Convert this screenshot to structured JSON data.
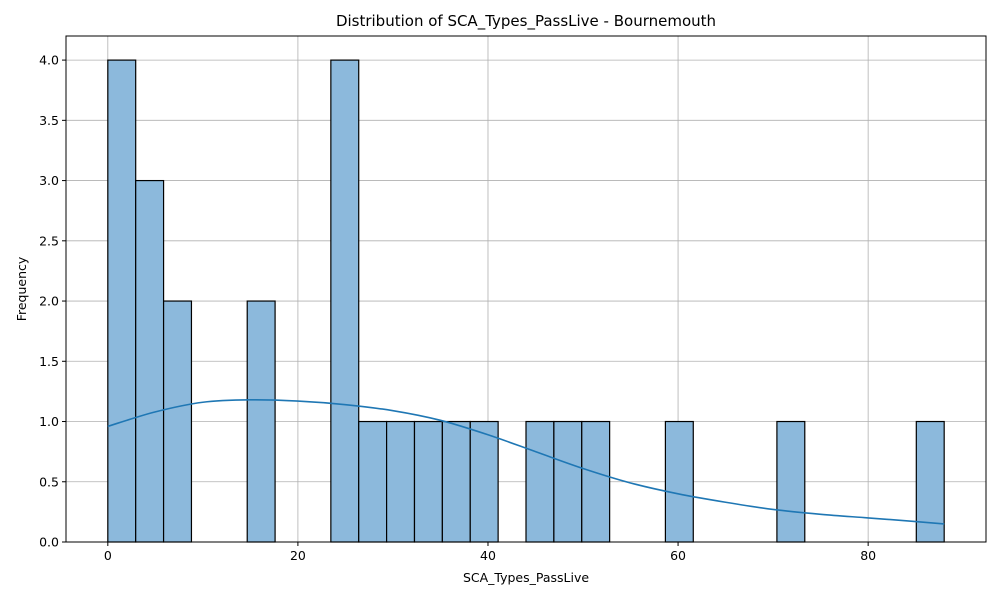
{
  "chart_data": {
    "type": "bar",
    "title": "Distribution of SCA_Types_PassLive - Bournemouth",
    "xlabel": "SCA_Types_PassLive",
    "ylabel": "Frequency",
    "xlim": [
      -4.4,
      92.4
    ],
    "ylim": [
      0,
      4.2
    ],
    "xticks": [
      0,
      20,
      40,
      60,
      80
    ],
    "yticks": [
      0.0,
      0.5,
      1.0,
      1.5,
      2.0,
      2.5,
      3.0,
      3.5,
      4.0
    ],
    "xtick_labels": [
      "0",
      "20",
      "40",
      "60",
      "80"
    ],
    "ytick_labels": [
      "0.0",
      "0.5",
      "1.0",
      "1.5",
      "2.0",
      "2.5",
      "3.0",
      "3.5",
      "4.0"
    ],
    "grid": true,
    "bin_edges": [
      0,
      2.933,
      5.867,
      8.8,
      11.733,
      14.667,
      17.6,
      20.533,
      23.467,
      26.4,
      29.333,
      32.267,
      35.2,
      38.133,
      41.067,
      44.0,
      46.933,
      49.867,
      52.8,
      55.733,
      58.667,
      61.6,
      64.533,
      67.467,
      70.4,
      73.333,
      76.267,
      79.2,
      82.133,
      85.067,
      88.0
    ],
    "values": [
      4,
      3,
      2,
      0,
      0,
      2,
      0,
      0,
      4,
      1,
      1,
      1,
      1,
      1,
      0,
      1,
      1,
      1,
      0,
      0,
      1,
      0,
      0,
      0,
      1,
      0,
      0,
      0,
      0,
      1
    ],
    "bar_color": "#8cb9dc",
    "bar_edge_color": "#000000",
    "kde": {
      "color": "#1f77b4",
      "x": [
        0,
        5,
        10,
        15,
        20,
        25,
        30,
        35,
        40,
        45,
        50,
        55,
        60,
        65,
        70,
        75,
        80,
        85,
        88
      ],
      "y": [
        0.96,
        1.08,
        1.16,
        1.18,
        1.17,
        1.14,
        1.09,
        1.01,
        0.89,
        0.75,
        0.61,
        0.49,
        0.4,
        0.33,
        0.27,
        0.23,
        0.2,
        0.17,
        0.15
      ]
    }
  }
}
